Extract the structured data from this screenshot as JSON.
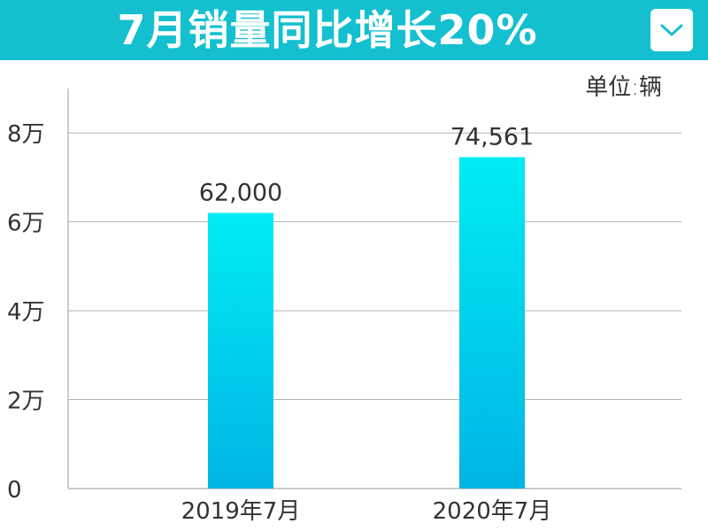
{
  "header": {
    "title": "7月销量同比增长20%",
    "dropdown_icon": "chevron-down-icon"
  },
  "colors": {
    "banner": "#14c0cf",
    "bar_top": "#00ecf4",
    "bar_bottom": "#00b4e4",
    "grid": "#b3b3b3",
    "axis": "#999999"
  },
  "chart_data": {
    "type": "bar",
    "unit_label": "单位:辆",
    "categories": [
      "2019年7月",
      "2020年7月"
    ],
    "values": [
      62000,
      74561
    ],
    "value_labels": [
      "62,000",
      "74,561"
    ],
    "ylim": [
      0,
      90000
    ],
    "yticks": [
      0,
      20000,
      40000,
      60000,
      80000
    ],
    "ytick_labels": [
      "0",
      "2万",
      "4万",
      "6万",
      "8万"
    ],
    "grid": true,
    "legend": "none",
    "title": "",
    "xlabel": "",
    "ylabel": ""
  }
}
